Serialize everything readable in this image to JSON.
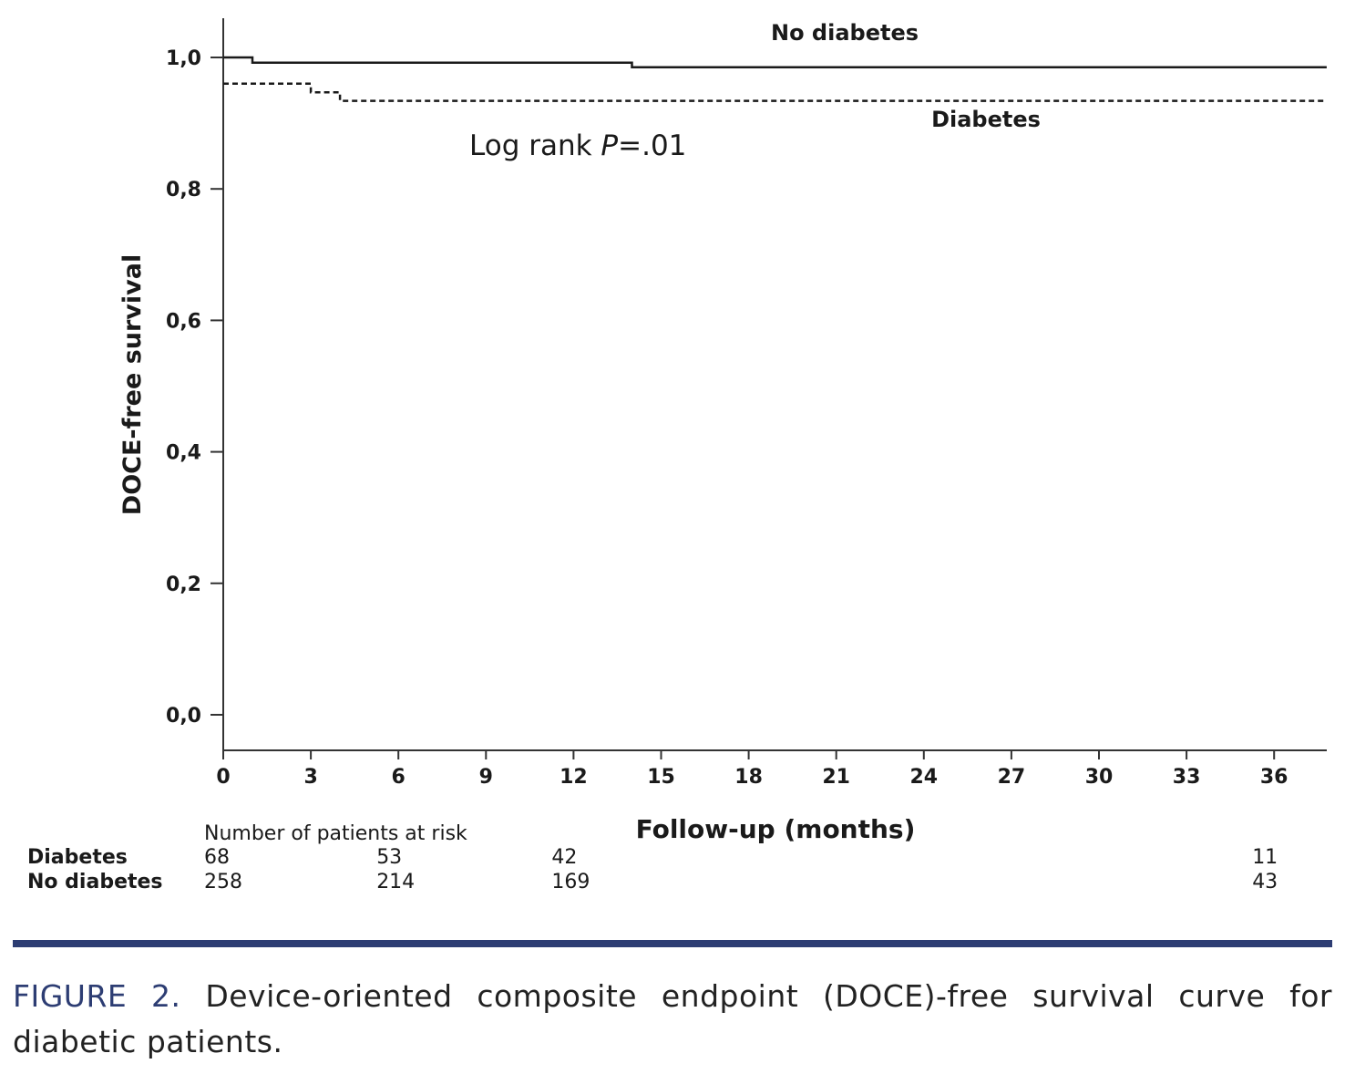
{
  "chart_data": {
    "type": "line",
    "ylabel": "DOCE-free survival",
    "xlabel": "Follow-up (months)",
    "x_ticks": [
      "0",
      "3",
      "6",
      "9",
      "12",
      "15",
      "18",
      "21",
      "24",
      "27",
      "30",
      "33",
      "36"
    ],
    "y_ticks": [
      "0,0",
      "0,2",
      "0,4",
      "0,6",
      "0,8",
      "1,0"
    ],
    "xlim": [
      0,
      37.8
    ],
    "ylim": [
      -0.06,
      1.06
    ],
    "annotation": {
      "text_prefix": "Log rank ",
      "p_label": "P",
      "text_suffix": "=.01"
    },
    "series": [
      {
        "name": "No diabetes",
        "style": "solid",
        "x": [
          0,
          1.0,
          1.0,
          14.0,
          14.0,
          37.8
        ],
        "y": [
          1.0,
          1.0,
          0.992,
          0.992,
          0.985,
          0.985
        ]
      },
      {
        "name": "Diabetes",
        "style": "dashed",
        "x": [
          0,
          3.0,
          3.0,
          4.0,
          4.0,
          37.8
        ],
        "y": [
          0.96,
          0.96,
          0.947,
          0.947,
          0.934,
          0.934
        ]
      }
    ]
  },
  "risk_table": {
    "title": "Number of patients at risk",
    "rows": [
      {
        "label": "Diabetes",
        "cells": [
          {
            "month": 0,
            "value": "68"
          },
          {
            "month": 6,
            "value": "53"
          },
          {
            "month": 12,
            "value": "42"
          },
          {
            "month": 36,
            "value": "11"
          }
        ]
      },
      {
        "label": "No diabetes",
        "cells": [
          {
            "month": 0,
            "value": "258"
          },
          {
            "month": 6,
            "value": "214"
          },
          {
            "month": 12,
            "value": "169"
          },
          {
            "month": 36,
            "value": "43"
          }
        ]
      }
    ]
  },
  "caption": {
    "label": "FIGURE 2.",
    "text": "Device-oriented composite endpoint (DOCE)-free survival curve for diabetic patients."
  },
  "colors": {
    "line": "#1a1a1a",
    "axis": "#333333",
    "separator": "#2d3d73",
    "caption_label": "#2d3d73"
  }
}
